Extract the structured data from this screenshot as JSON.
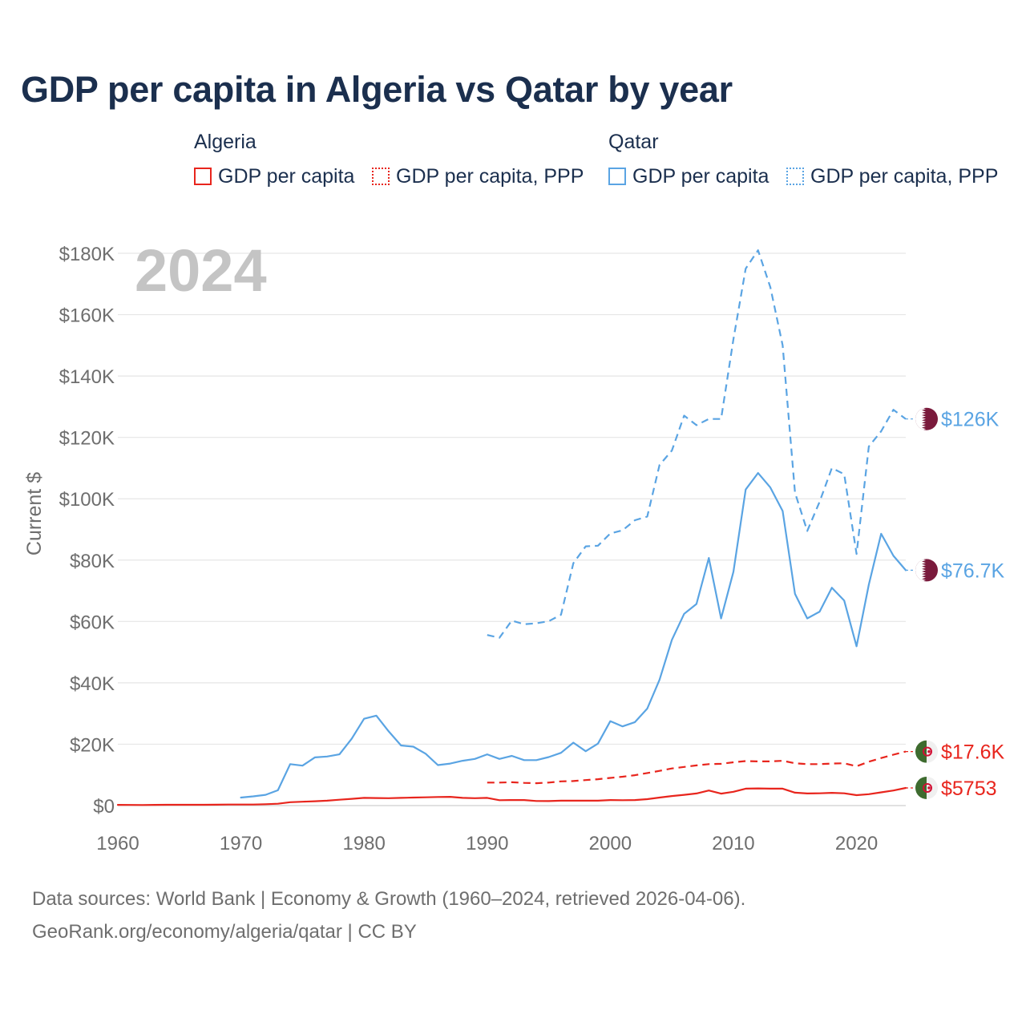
{
  "title": "GDP per capita in Algeria vs Qatar by year",
  "legend": {
    "groups": [
      {
        "name": "Algeria",
        "color": "#e8251d",
        "items": [
          {
            "label": "GDP per capita",
            "style": "solid"
          },
          {
            "label": "GDP per capita, PPP",
            "style": "dotted"
          }
        ]
      },
      {
        "name": "Qatar",
        "color": "#5aa4e3",
        "items": [
          {
            "label": "GDP per capita",
            "style": "solid"
          },
          {
            "label": "GDP per capita, PPP",
            "style": "dotted"
          }
        ]
      }
    ]
  },
  "year_watermark": "2024",
  "footer": {
    "line1": "Data sources: World Bank | Economy & Growth (1960–2024, retrieved 2026-04-06).",
    "line2": "GeoRank.org/economy/algeria/qatar | CC BY"
  },
  "chart_data": {
    "type": "line",
    "title": "GDP per capita in Algeria vs Qatar by year",
    "xlabel": "",
    "ylabel": "Current $",
    "xlim": [
      1960,
      2024
    ],
    "ylim": [
      0,
      180000
    ],
    "x_ticks": [
      1960,
      1970,
      1980,
      1990,
      2000,
      2010,
      2020
    ],
    "x_tick_labels": [
      "1960",
      "1970",
      "1980",
      "1990",
      "2000",
      "2010",
      "2020"
    ],
    "y_ticks": [
      0,
      20000,
      40000,
      60000,
      80000,
      100000,
      120000,
      140000,
      160000,
      180000
    ],
    "y_tick_labels": [
      "$0",
      "$20K",
      "$40K",
      "$60K",
      "$80K",
      "$100K",
      "$120K",
      "$140K",
      "$160K",
      "$180K"
    ],
    "grid": true,
    "series": [
      {
        "name": "Algeria GDP per capita",
        "country": "Algeria",
        "color": "#e8251d",
        "dash": "solid",
        "end_label": "$5753",
        "x": [
          1960,
          1961,
          1962,
          1963,
          1964,
          1965,
          1966,
          1967,
          1968,
          1969,
          1970,
          1971,
          1972,
          1973,
          1974,
          1975,
          1976,
          1977,
          1978,
          1979,
          1980,
          1981,
          1982,
          1983,
          1984,
          1985,
          1986,
          1987,
          1988,
          1989,
          1990,
          1991,
          1992,
          1993,
          1994,
          1995,
          1996,
          1997,
          1998,
          1999,
          2000,
          2001,
          2002,
          2003,
          2004,
          2005,
          2006,
          2007,
          2008,
          2009,
          2010,
          2011,
          2012,
          2013,
          2014,
          2015,
          2016,
          2017,
          2018,
          2019,
          2020,
          2021,
          2022,
          2023,
          2024
        ],
        "values": [
          240,
          210,
          170,
          230,
          250,
          260,
          250,
          270,
          300,
          330,
          340,
          340,
          450,
          600,
          1100,
          1250,
          1400,
          1600,
          1900,
          2200,
          2500,
          2450,
          2400,
          2500,
          2600,
          2700,
          2800,
          2850,
          2500,
          2400,
          2500,
          1750,
          1800,
          1800,
          1500,
          1450,
          1600,
          1600,
          1600,
          1600,
          1800,
          1750,
          1800,
          2100,
          2600,
          3100,
          3500,
          3950,
          4900,
          3900,
          4500,
          5500,
          5600,
          5500,
          5500,
          4200,
          3950,
          4000,
          4150,
          4000,
          3400,
          3700,
          4300,
          4900,
          5753
        ]
      },
      {
        "name": "Algeria GDP per capita, PPP",
        "country": "Algeria",
        "color": "#e8251d",
        "dash": "dashed",
        "end_label": "$17.6K",
        "x": [
          1990,
          1991,
          1992,
          1993,
          1994,
          1995,
          1996,
          1997,
          1998,
          1999,
          2000,
          2001,
          2002,
          2003,
          2004,
          2005,
          2006,
          2007,
          2008,
          2009,
          2010,
          2011,
          2012,
          2013,
          2014,
          2015,
          2016,
          2017,
          2018,
          2019,
          2020,
          2021,
          2022,
          2023,
          2024
        ],
        "values": [
          7500,
          7500,
          7600,
          7400,
          7300,
          7500,
          7900,
          8000,
          8300,
          8600,
          9000,
          9400,
          9900,
          10600,
          11300,
          12100,
          12600,
          13100,
          13500,
          13600,
          14100,
          14500,
          14400,
          14400,
          14600,
          13800,
          13500,
          13500,
          13700,
          13800,
          12800,
          14300,
          15500,
          16600,
          17600
        ]
      },
      {
        "name": "Qatar GDP per capita",
        "country": "Qatar",
        "color": "#5aa4e3",
        "dash": "solid",
        "end_label": "$76.7K",
        "x": [
          1970,
          1971,
          1972,
          1973,
          1974,
          1975,
          1976,
          1977,
          1978,
          1979,
          1980,
          1981,
          1982,
          1983,
          1984,
          1985,
          1986,
          1987,
          1988,
          1989,
          1990,
          1991,
          1992,
          1993,
          1994,
          1995,
          1996,
          1997,
          1998,
          1999,
          2000,
          2001,
          2002,
          2003,
          2004,
          2005,
          2006,
          2007,
          2008,
          2009,
          2010,
          2011,
          2012,
          2013,
          2014,
          2015,
          2016,
          2017,
          2018,
          2019,
          2020,
          2021,
          2022,
          2023,
          2024
        ],
        "values": [
          2600,
          3000,
          3500,
          5000,
          13500,
          13000,
          15700,
          16000,
          16700,
          21800,
          28300,
          29300,
          24200,
          19600,
          19200,
          16900,
          13200,
          13700,
          14600,
          15200,
          16700,
          15200,
          16200,
          14800,
          14800,
          15800,
          17200,
          20500,
          17700,
          20200,
          27500,
          25800,
          27200,
          31600,
          41000,
          54000,
          62500,
          65700,
          80700,
          61000,
          76200,
          103000,
          108400,
          103700,
          96000,
          69000,
          61000,
          63200,
          71000,
          66800,
          51900,
          72000,
          88600,
          81400,
          76700
        ]
      },
      {
        "name": "Qatar GDP per capita, PPP",
        "country": "Qatar",
        "color": "#5aa4e3",
        "dash": "dashed",
        "end_label": "$126K",
        "x": [
          1990,
          1991,
          1992,
          1993,
          1994,
          1995,
          1996,
          1997,
          1998,
          1999,
          2000,
          2001,
          2002,
          2003,
          2004,
          2005,
          2006,
          2007,
          2008,
          2009,
          2010,
          2011,
          2012,
          2013,
          2014,
          2015,
          2016,
          2017,
          2018,
          2019,
          2020,
          2021,
          2022,
          2023,
          2024
        ],
        "values": [
          55600,
          54700,
          60300,
          59100,
          59400,
          60100,
          62200,
          79000,
          84500,
          84700,
          88700,
          89700,
          93000,
          94200,
          111000,
          115700,
          127100,
          124000,
          126000,
          126000,
          152000,
          175000,
          181000,
          169000,
          150000,
          102000,
          89500,
          99000,
          110000,
          108000,
          82000,
          117000,
          122000,
          129000,
          126000
        ]
      }
    ]
  }
}
